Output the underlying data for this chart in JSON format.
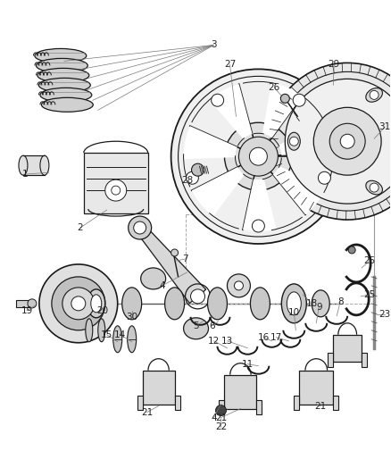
{
  "bg_color": "#ffffff",
  "lc": "#1a1a1a",
  "figsize": [
    4.38,
    5.33
  ],
  "dpi": 100,
  "ax_aspect": "equal",
  "xlim": [
    0,
    438
  ],
  "ylim": [
    0,
    533
  ]
}
